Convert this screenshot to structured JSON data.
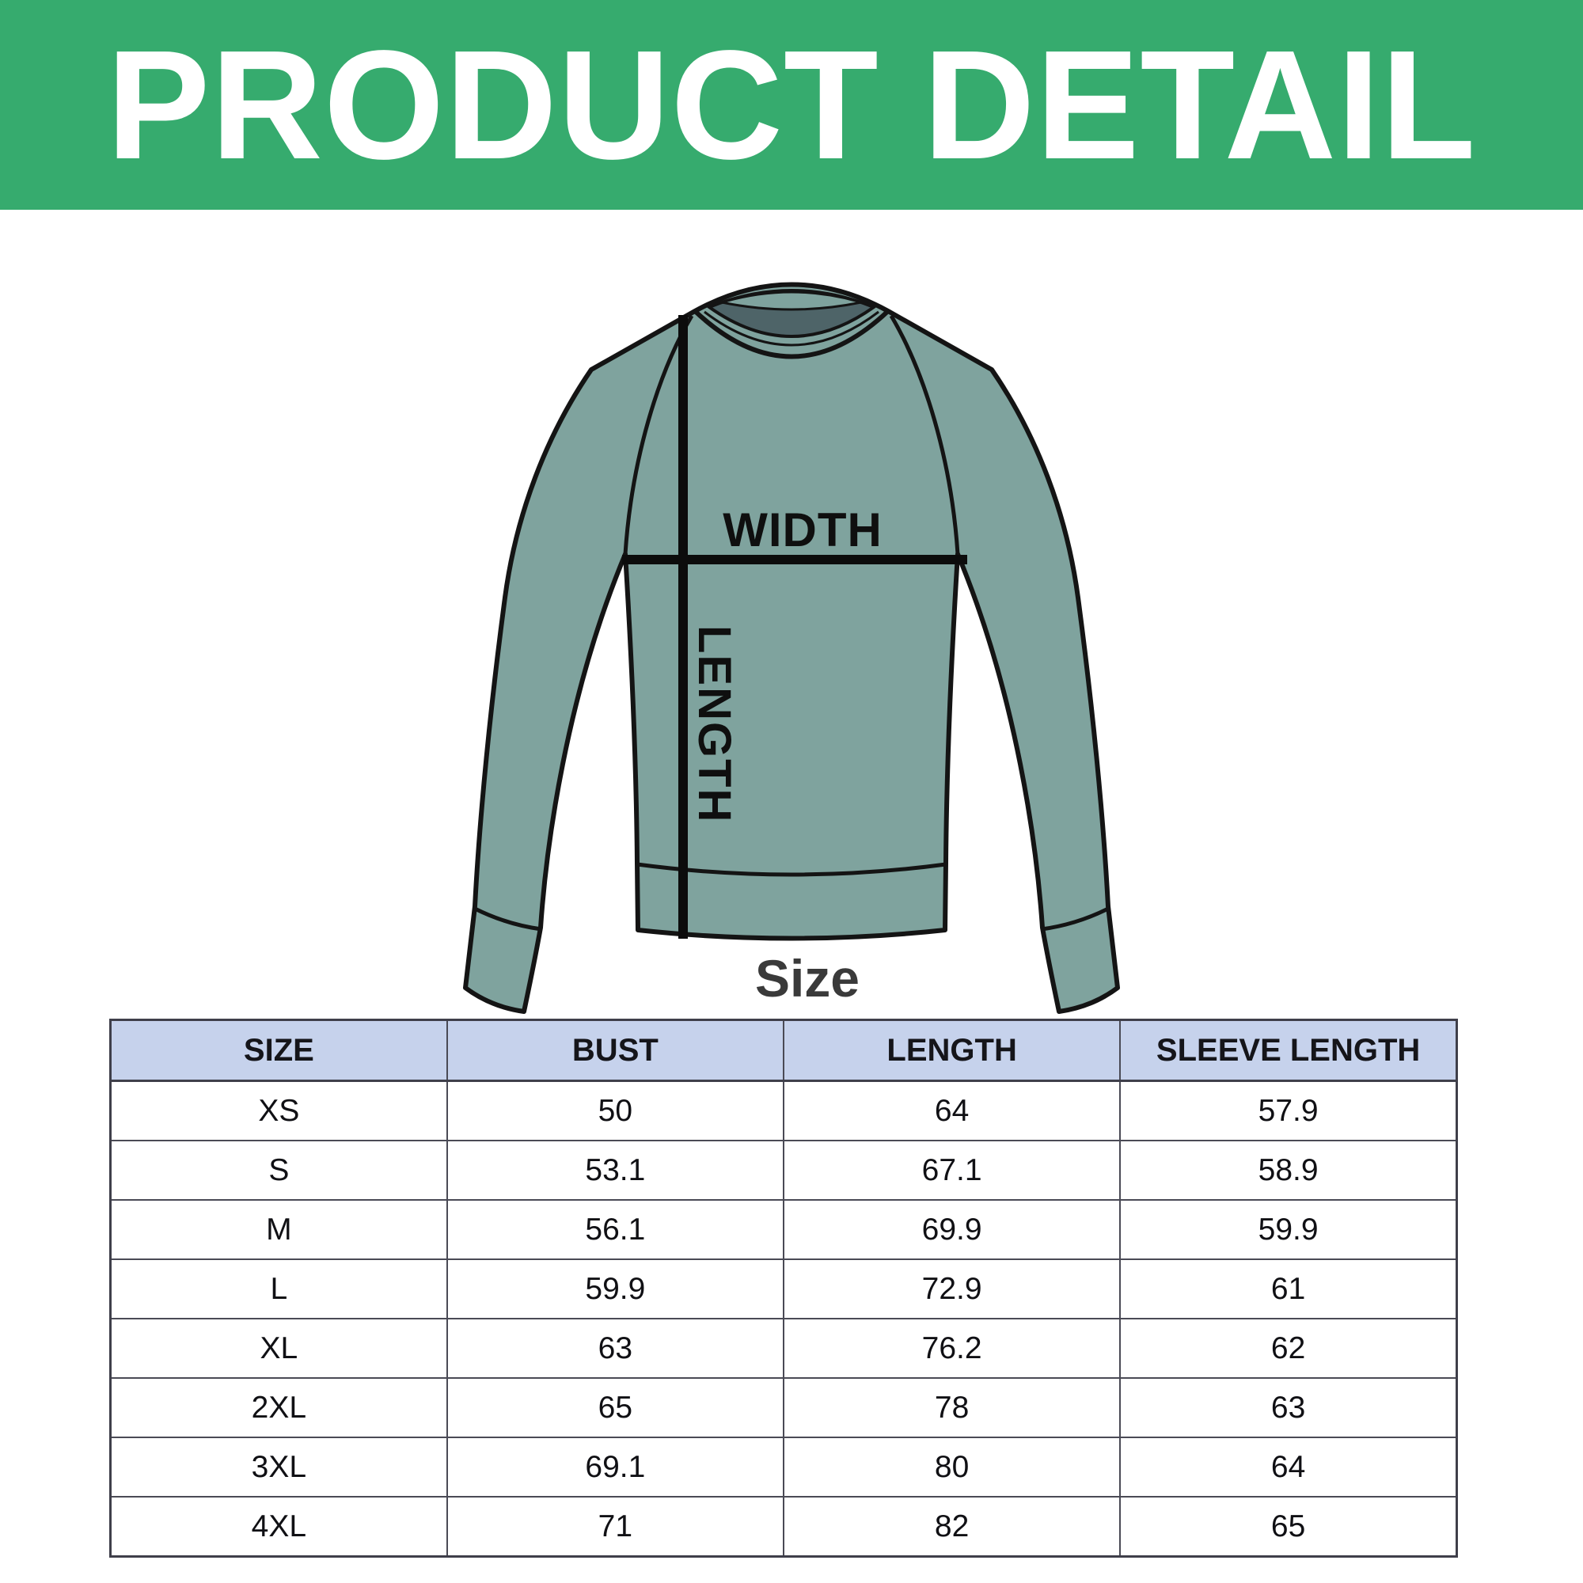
{
  "banner": {
    "title": "PRODUCT DETAIL",
    "bg_color": "#36ab6e",
    "text_color": "#ffffff"
  },
  "diagram": {
    "width_label": "WIDTH",
    "length_label": "LENGTH",
    "shirt_color": "#7fa39e",
    "neck_interior_color": "#4e6468",
    "outline_color": "#141414",
    "measure_line_color": "#0c0c0c"
  },
  "size_heading": "Size",
  "table": {
    "header_bg": "#c6d2ec",
    "border_color": "#4a4a55",
    "columns": [
      "SIZE",
      "BUST",
      "LENGTH",
      "SLEEVE LENGTH"
    ],
    "rows": [
      {
        "size": "XS",
        "bust": "50",
        "length": "64",
        "sleeve": "57.9"
      },
      {
        "size": "S",
        "bust": "53.1",
        "length": "67.1",
        "sleeve": "58.9"
      },
      {
        "size": "M",
        "bust": "56.1",
        "length": "69.9",
        "sleeve": "59.9"
      },
      {
        "size": "L",
        "bust": "59.9",
        "length": "72.9",
        "sleeve": "61"
      },
      {
        "size": "XL",
        "bust": "63",
        "length": "76.2",
        "sleeve": "62"
      },
      {
        "size": "2XL",
        "bust": "65",
        "length": "78",
        "sleeve": "63"
      },
      {
        "size": "3XL",
        "bust": "69.1",
        "length": "80",
        "sleeve": "64"
      },
      {
        "size": "4XL",
        "bust": "71",
        "length": "82",
        "sleeve": "65"
      }
    ]
  }
}
